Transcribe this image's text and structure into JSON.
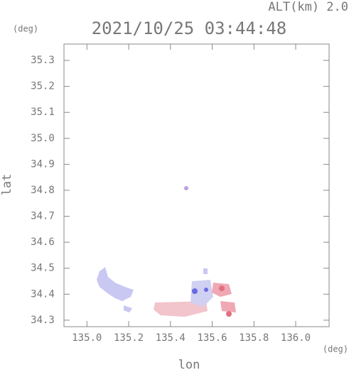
{
  "chart_data": {
    "type": "scatter",
    "title": "2021/10/25 03:44:48",
    "subtitle": "ALT(km) 2.0",
    "y_unit": "(deg)",
    "x_unit": "(deg)",
    "x_label": "lon",
    "y_label": "lat",
    "xlim": [
      134.89,
      136.16
    ],
    "ylim": [
      34.275,
      35.363
    ],
    "xticks": [
      {
        "value": 135,
        "label": "135.0"
      },
      135.2,
      135.4,
      135.6,
      135.8,
      {
        "value": 136,
        "label": "136.0"
      }
    ],
    "yticks": [
      34.3,
      34.4,
      34.5,
      34.6,
      34.7,
      34.8,
      34.9,
      {
        "value": 35,
        "label": "35.0"
      },
      35.1,
      35.2,
      35.3
    ]
  }
}
